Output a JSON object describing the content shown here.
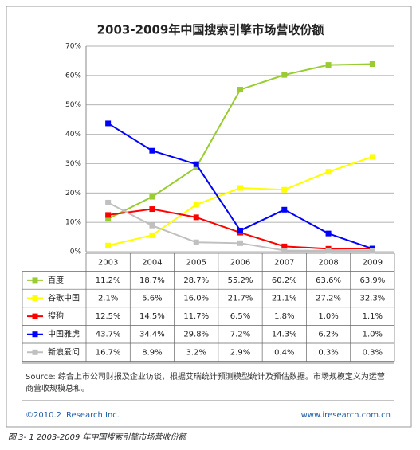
{
  "chart_data": {
    "type": "line",
    "title": "2003-2009年中国搜索引擎市场营收份额",
    "categories": [
      "2003",
      "2004",
      "2005",
      "2006",
      "2007",
      "2008",
      "2009"
    ],
    "ylim": [
      0,
      70
    ],
    "yticks": [
      {
        "value": 0,
        "label": "0%"
      },
      {
        "value": 10,
        "label": "10%"
      },
      {
        "value": 20,
        "label": "20%"
      },
      {
        "value": 30,
        "label": "30%"
      },
      {
        "value": 40,
        "label": "40%"
      },
      {
        "value": 50,
        "label": "50%"
      },
      {
        "value": 60,
        "label": "60%"
      },
      {
        "value": 70,
        "label": "70%"
      }
    ],
    "grid": true,
    "series": [
      {
        "name": "百度",
        "color": "#99cc33",
        "values": [
          11.2,
          18.7,
          28.7,
          55.2,
          60.2,
          63.6,
          63.9
        ],
        "value_labels": [
          "11.2%",
          "18.7%",
          "28.7%",
          "55.2%",
          "60.2%",
          "63.6%",
          "63.9%"
        ]
      },
      {
        "name": "谷歌中国",
        "color": "#ffff00",
        "values": [
          2.1,
          5.6,
          16.0,
          21.7,
          21.1,
          27.2,
          32.3
        ],
        "value_labels": [
          "2.1%",
          "5.6%",
          "16.0%",
          "21.7%",
          "21.1%",
          "27.2%",
          "32.3%"
        ]
      },
      {
        "name": "搜狗",
        "color": "#ff0000",
        "values": [
          12.5,
          14.5,
          11.7,
          6.5,
          1.8,
          1.0,
          1.1
        ],
        "value_labels": [
          "12.5%",
          "14.5%",
          "11.7%",
          "6.5%",
          "1.8%",
          "1.0%",
          "1.1%"
        ]
      },
      {
        "name": "中国雅虎",
        "color": "#0000ff",
        "values": [
          43.7,
          34.4,
          29.8,
          7.2,
          14.3,
          6.2,
          1.0
        ],
        "value_labels": [
          "43.7%",
          "34.4%",
          "29.8%",
          "7.2%",
          "14.3%",
          "6.2%",
          "1.0%"
        ]
      },
      {
        "name": "新浪爱问",
        "color": "#c0c0c0",
        "values": [
          16.7,
          8.9,
          3.2,
          2.9,
          0.4,
          0.3,
          0.3
        ],
        "value_labels": [
          "16.7%",
          "8.9%",
          "3.2%",
          "2.9%",
          "0.4%",
          "0.3%",
          "0.3%"
        ]
      }
    ],
    "source": "Source: 综合上市公司财报及企业访谈，根据艾瑞统计预测模型统计及预估数据。市场规模定义为运营商营收规模总和。",
    "copyright": "©2010.2 iResearch Inc.",
    "website": "www.iresearch.com.cn",
    "caption": "图 3- 1 2003-2009 年中国搜索引擎市场营收份额"
  }
}
